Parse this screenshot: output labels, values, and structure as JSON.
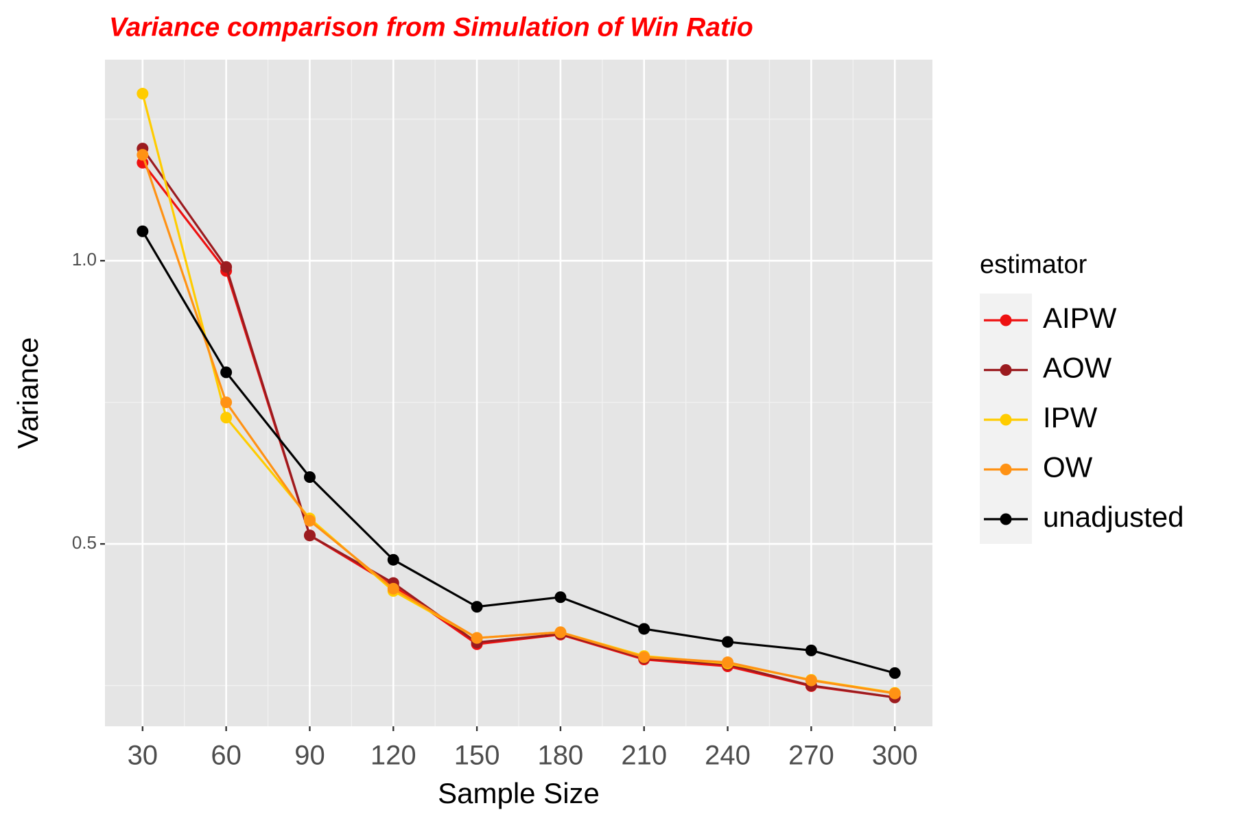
{
  "chart_data": {
    "type": "line",
    "title": "Variance comparison from Simulation of Win Ratio",
    "x_label": "Sample Size",
    "y_label": "Variance",
    "legend_title": "estimator",
    "legend": "right",
    "grid": true,
    "x": [
      30,
      60,
      90,
      120,
      150,
      180,
      210,
      240,
      270,
      300
    ],
    "xlim": [
      16.5,
      313.5
    ],
    "xticks": [
      30,
      60,
      90,
      120,
      150,
      180,
      210,
      240,
      270,
      300
    ],
    "ylim": [
      0.178,
      1.355
    ],
    "yticks": [
      0.5,
      {
        "value": 1,
        "label": "1.0"
      }
    ],
    "series": [
      {
        "name": "AIPW",
        "color": "#ee1111",
        "values": [
          1.173,
          0.982,
          0.515,
          0.426,
          0.323,
          0.34,
          0.296,
          0.284,
          0.249,
          0.229
        ]
      },
      {
        "name": "AOW",
        "color": "#9b1b1f",
        "values": [
          1.198,
          0.989,
          0.515,
          0.431,
          0.326,
          0.341,
          0.298,
          0.287,
          0.25,
          0.229
        ]
      },
      {
        "name": "IPW",
        "color": "#ffcc00",
        "values": [
          1.295,
          0.723,
          0.545,
          0.417,
          0.334,
          0.344,
          0.302,
          0.289,
          0.26,
          0.237
        ]
      },
      {
        "name": "OW",
        "color": "#ff9214",
        "values": [
          1.187,
          0.75,
          0.541,
          0.421,
          0.334,
          0.344,
          0.3,
          0.291,
          0.259,
          0.236
        ]
      },
      {
        "name": "unadjusted",
        "color": "#000000",
        "values": [
          1.052,
          0.803,
          0.618,
          0.472,
          0.389,
          0.406,
          0.35,
          0.327,
          0.312,
          0.272
        ]
      }
    ]
  }
}
